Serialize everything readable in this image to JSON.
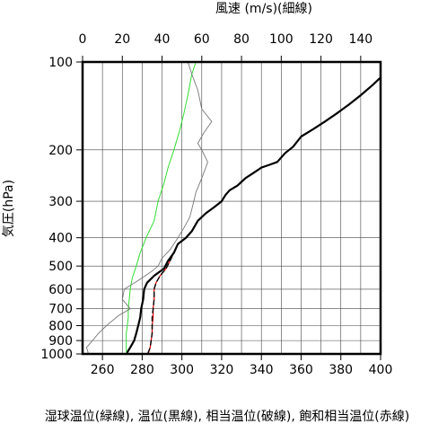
{
  "chart_data": {
    "type": "line",
    "caption": "湿球温位(緑線), 温位(黒線), 相当温位(破線), 飽和相当温位(赤線)",
    "ylabel": "気圧(hPa)",
    "y_scale": "log",
    "y_reversed": true,
    "ylim": [
      1000,
      100
    ],
    "y_ticks": [
      100,
      200,
      300,
      400,
      500,
      600,
      700,
      800,
      900,
      1000
    ],
    "y_tick_labels": [
      "100",
      "200",
      "300",
      "400",
      "500",
      "600",
      "700",
      "800",
      "900",
      "1000"
    ],
    "x_bottom": {
      "label": "",
      "lim": [
        250,
        400
      ],
      "ticks": [
        260,
        280,
        300,
        320,
        340,
        360,
        380,
        400
      ],
      "tick_labels": [
        "260",
        "280",
        "300",
        "320",
        "340",
        "360",
        "380",
        "400"
      ]
    },
    "x_top": {
      "label": "風速 (m/s)(細線)",
      "lim": [
        0,
        150
      ],
      "ticks": [
        0,
        20,
        40,
        60,
        80,
        100,
        120,
        140
      ],
      "tick_labels": [
        "0",
        "20",
        "40",
        "60",
        "80",
        "100",
        "120",
        "140"
      ]
    },
    "grid": true,
    "series": [
      {
        "name": "飽和相当温位",
        "axis": "bottom",
        "color": "#ff0000",
        "dash": "solid",
        "width": 1.2,
        "points": [
          [
            283,
            1000
          ],
          [
            284,
            950
          ],
          [
            284.5,
            900
          ],
          [
            285,
            850
          ],
          [
            285,
            800
          ],
          [
            285.5,
            750
          ],
          [
            285.5,
            700
          ],
          [
            286,
            650
          ],
          [
            286,
            600
          ],
          [
            287,
            570
          ],
          [
            289,
            540
          ],
          [
            292,
            510
          ],
          [
            294,
            480
          ],
          [
            296,
            450
          ],
          [
            298,
            420
          ],
          [
            302,
            400
          ],
          [
            305,
            380
          ],
          [
            308,
            350
          ],
          [
            312,
            330
          ],
          [
            316,
            315
          ],
          [
            320,
            300
          ],
          [
            322,
            285
          ],
          [
            324,
            275
          ],
          [
            328,
            265
          ],
          [
            332,
            250
          ],
          [
            336,
            240
          ],
          [
            340,
            230
          ],
          [
            344,
            225
          ],
          [
            348,
            220
          ],
          [
            352,
            205
          ],
          [
            356,
            195
          ],
          [
            360,
            180
          ],
          [
            366,
            170
          ],
          [
            372,
            160
          ],
          [
            378,
            150
          ],
          [
            384,
            140
          ],
          [
            390,
            130
          ],
          [
            396,
            120
          ],
          [
            400,
            113
          ]
        ]
      },
      {
        "name": "温位",
        "axis": "bottom",
        "color": "#000000",
        "dash": "solid",
        "width": 2.2,
        "points": [
          [
            272,
            1000
          ],
          [
            274,
            950
          ],
          [
            276,
            900
          ],
          [
            277,
            850
          ],
          [
            278,
            800
          ],
          [
            279,
            750
          ],
          [
            279.5,
            700
          ],
          [
            280.5,
            650
          ],
          [
            281,
            600
          ],
          [
            282.5,
            570
          ],
          [
            286,
            540
          ],
          [
            291,
            510
          ],
          [
            293,
            480
          ],
          [
            296,
            450
          ],
          [
            298,
            420
          ],
          [
            302,
            400
          ],
          [
            305,
            380
          ],
          [
            308,
            350
          ],
          [
            312,
            330
          ],
          [
            316,
            315
          ],
          [
            320,
            300
          ],
          [
            322,
            285
          ],
          [
            324,
            275
          ],
          [
            328,
            265
          ],
          [
            332,
            250
          ],
          [
            336,
            240
          ],
          [
            340,
            230
          ],
          [
            344,
            225
          ],
          [
            348,
            220
          ],
          [
            352,
            205
          ],
          [
            356,
            195
          ],
          [
            360,
            180
          ],
          [
            366,
            170
          ],
          [
            372,
            160
          ],
          [
            378,
            150
          ],
          [
            384,
            140
          ],
          [
            390,
            130
          ],
          [
            396,
            120
          ],
          [
            400,
            113
          ]
        ]
      },
      {
        "name": "相当温位",
        "axis": "bottom",
        "color": "#000000",
        "dash": "dashed",
        "width": 1.4,
        "points": [
          [
            283,
            990
          ],
          [
            284,
            950
          ],
          [
            284.5,
            900
          ],
          [
            285,
            850
          ],
          [
            285,
            800
          ],
          [
            285,
            750
          ],
          [
            285.5,
            700
          ],
          [
            286,
            650
          ],
          [
            286,
            600
          ],
          [
            287,
            570
          ],
          [
            289,
            540
          ],
          [
            292,
            510
          ],
          [
            294,
            480
          ],
          [
            296,
            450
          ],
          [
            298,
            420
          ],
          [
            302,
            400
          ],
          [
            305,
            380
          ],
          [
            308,
            350
          ],
          [
            312,
            330
          ],
          [
            316,
            315
          ],
          [
            320,
            300
          ],
          [
            322,
            285
          ],
          [
            324,
            275
          ],
          [
            328,
            265
          ],
          [
            332,
            250
          ],
          [
            336,
            240
          ],
          [
            340,
            230
          ],
          [
            344,
            225
          ],
          [
            348,
            220
          ],
          [
            352,
            205
          ],
          [
            356,
            195
          ],
          [
            360,
            180
          ],
          [
            366,
            170
          ],
          [
            372,
            160
          ],
          [
            378,
            150
          ],
          [
            384,
            140
          ],
          [
            390,
            130
          ],
          [
            396,
            120
          ],
          [
            400,
            113
          ]
        ]
      },
      {
        "name": "湿球温位",
        "axis": "bottom",
        "color": "#33dd33",
        "dash": "solid",
        "width": 1.0,
        "points": [
          [
            272,
            1000
          ],
          [
            272,
            950
          ],
          [
            272,
            900
          ],
          [
            272,
            850
          ],
          [
            272.5,
            800
          ],
          [
            273,
            750
          ],
          [
            273,
            700
          ],
          [
            273.5,
            650
          ],
          [
            274,
            600
          ],
          [
            275,
            550
          ],
          [
            277,
            500
          ],
          [
            279,
            450
          ],
          [
            282,
            400
          ],
          [
            286,
            350
          ],
          [
            288,
            300
          ],
          [
            291,
            260
          ],
          [
            293,
            230
          ],
          [
            296,
            200
          ],
          [
            299,
            170
          ],
          [
            301,
            150
          ],
          [
            303,
            130
          ],
          [
            305,
            110
          ],
          [
            307,
            100
          ]
        ]
      },
      {
        "name": "風速",
        "axis": "top",
        "color": "#777777",
        "dash": "solid",
        "width": 0.9,
        "points": [
          [
            3,
            1000
          ],
          [
            2,
            950
          ],
          [
            5,
            900
          ],
          [
            8,
            850
          ],
          [
            12,
            800
          ],
          [
            18,
            740
          ],
          [
            24,
            700
          ],
          [
            20,
            650
          ],
          [
            21,
            600
          ],
          [
            28,
            560
          ],
          [
            35,
            520
          ],
          [
            38,
            500
          ],
          [
            40,
            470
          ],
          [
            44,
            440
          ],
          [
            48,
            400
          ],
          [
            51,
            370
          ],
          [
            54,
            340
          ],
          [
            56,
            300
          ],
          [
            57,
            280
          ],
          [
            60,
            250
          ],
          [
            62,
            230
          ],
          [
            63,
            220
          ],
          [
            60,
            200
          ],
          [
            58,
            190
          ],
          [
            61,
            175
          ],
          [
            65,
            160
          ],
          [
            60,
            145
          ],
          [
            58,
            125
          ],
          [
            55,
            110
          ],
          [
            53,
            100
          ]
        ]
      }
    ]
  }
}
